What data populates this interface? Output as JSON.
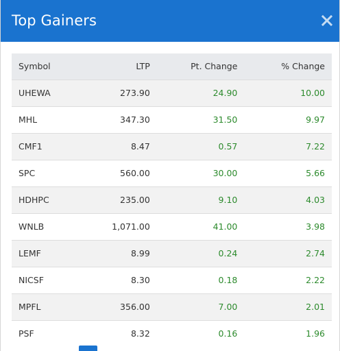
{
  "modal": {
    "title": "Top Gainers"
  },
  "table": {
    "columns": [
      "Symbol",
      "LTP",
      "Pt. Change",
      "% Change"
    ],
    "rows": [
      {
        "symbol": "UHEWA",
        "ltp": "273.90",
        "pt_change": "24.90",
        "pct_change": "10.00"
      },
      {
        "symbol": "MHL",
        "ltp": "347.30",
        "pt_change": "31.50",
        "pct_change": "9.97"
      },
      {
        "symbol": "CMF1",
        "ltp": "8.47",
        "pt_change": "0.57",
        "pct_change": "7.22"
      },
      {
        "symbol": "SPC",
        "ltp": "560.00",
        "pt_change": "30.00",
        "pct_change": "5.66"
      },
      {
        "symbol": "HDHPC",
        "ltp": "235.00",
        "pt_change": "9.10",
        "pct_change": "4.03"
      },
      {
        "symbol": "WNLB",
        "ltp": "1,071.00",
        "pt_change": "41.00",
        "pct_change": "3.98"
      },
      {
        "symbol": "LEMF",
        "ltp": "8.99",
        "pt_change": "0.24",
        "pct_change": "2.74"
      },
      {
        "symbol": "NICSF",
        "ltp": "8.30",
        "pt_change": "0.18",
        "pct_change": "2.22"
      },
      {
        "symbol": "MPFL",
        "ltp": "356.00",
        "pt_change": "7.00",
        "pct_change": "2.01"
      },
      {
        "symbol": "PSF",
        "ltp": "8.32",
        "pt_change": "0.16",
        "pct_change": "1.96"
      }
    ]
  },
  "colors": {
    "header_bg": "#1a73cf",
    "positive": "#2c8a2c",
    "row_alt": "#f2f2f2",
    "table_header_bg": "#e8eaed"
  },
  "icons": {
    "close": "close-icon"
  }
}
